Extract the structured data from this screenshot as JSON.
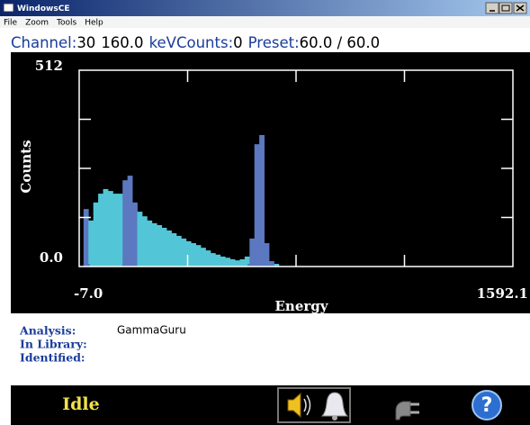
{
  "window": {
    "title": "WindowsCE"
  },
  "menu": [
    "File",
    "Zoom",
    "Tools",
    "Help"
  ],
  "status_line": [
    {
      "text": "Channel:",
      "kind": "label"
    },
    {
      "text": "30",
      "kind": "value"
    },
    {
      "text": "160.0",
      "kind": "value"
    },
    {
      "text": "keV",
      "kind": "label"
    },
    {
      "text": "Counts:",
      "kind": "label"
    },
    {
      "text": "0",
      "kind": "value"
    },
    {
      "text": "Preset:",
      "kind": "label"
    },
    {
      "text": "60.0 / 60.0",
      "kind": "value"
    }
  ],
  "chart_data": {
    "type": "histogram",
    "xlabel": "Energy",
    "ylabel": "Counts",
    "xlim": [
      -7,
      1592.1
    ],
    "ylim": [
      0,
      512
    ],
    "xticks": [
      {
        "value": -7,
        "label": "-7.0"
      },
      1592.1
    ],
    "yticks": [
      {
        "value": 0,
        "label": "0.0"
      },
      512
    ],
    "tick_divisions": 4,
    "color": "#52c6d6",
    "roi_color": "#5b78c0",
    "bins": [
      9,
      27,
      45,
      63,
      81,
      99,
      117,
      135,
      153,
      171,
      189,
      207,
      225,
      243,
      261,
      279,
      297,
      315,
      333,
      351,
      369,
      387,
      405,
      423,
      441,
      459,
      477,
      495,
      513,
      531,
      549,
      567,
      585,
      603,
      621,
      639,
      657,
      675,
      693,
      711,
      729
    ],
    "values": [
      150,
      120,
      167,
      190,
      202,
      197,
      190,
      190,
      225,
      237,
      167,
      143,
      131,
      120,
      113,
      108,
      101,
      94,
      87,
      80,
      73,
      66,
      61,
      56,
      49,
      42,
      35,
      31,
      26,
      23,
      19,
      16,
      19,
      26,
      73,
      319,
      343,
      61,
      14,
      7
    ],
    "rois": [
      {
        "start": 9,
        "end": 32
      },
      {
        "start": 152,
        "end": 199
      },
      {
        "start": 614,
        "end": 713
      }
    ]
  },
  "info": [
    {
      "label": "Analysis:",
      "value": "GammaGuru"
    },
    {
      "label": "In Library:"
    },
    {
      "label": "Identified:"
    }
  ],
  "toolbar": {
    "status": "Idle",
    "help_icon": "?"
  }
}
